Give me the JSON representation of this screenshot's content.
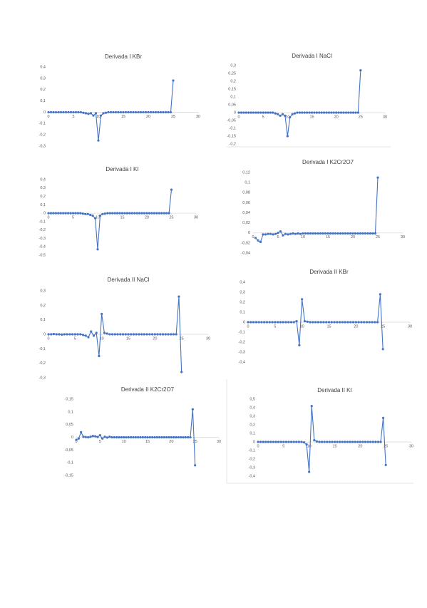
{
  "chart_data": [
    {
      "type": "line",
      "title": "Derivada I KBr",
      "color": "#4472c4",
      "x": [
        0,
        0.5,
        1,
        1.5,
        2,
        2.5,
        3,
        3.5,
        4,
        4.5,
        5,
        5.5,
        6,
        6.5,
        7,
        7.5,
        8,
        8.5,
        9,
        9.5,
        10,
        10.5,
        11,
        11.5,
        12,
        12.5,
        13,
        13.5,
        14,
        14.5,
        15,
        15.5,
        16,
        16.5,
        17,
        17.5,
        18,
        18.5,
        19,
        19.5,
        20,
        20.5,
        21,
        21.5,
        22,
        22.5,
        23,
        23.5,
        24,
        24.5,
        25
      ],
      "values": [
        0,
        0,
        0,
        0,
        0,
        0,
        0,
        0,
        0,
        0,
        0,
        0,
        0,
        0,
        -0.005,
        -0.01,
        -0.015,
        -0.01,
        -0.03,
        -0.01,
        -0.25,
        -0.03,
        -0.01,
        -0.005,
        0,
        0,
        0,
        0,
        0,
        0,
        0,
        0,
        0,
        0,
        0,
        0,
        0,
        0,
        0,
        0,
        0,
        0,
        0,
        0,
        0,
        0,
        0,
        0,
        0,
        0,
        0.28
      ],
      "xlim": [
        0,
        30
      ],
      "xticks": [
        0,
        5,
        10,
        15,
        20,
        25,
        30
      ],
      "ylim": [
        -0.3,
        0.4
      ],
      "yticks": [
        {
          "value": 0.4,
          "label": "0,4"
        },
        {
          "value": 0.3,
          "label": "0,3"
        },
        {
          "value": 0.2,
          "label": "0,2"
        },
        {
          "value": 0.1,
          "label": "0,1"
        },
        0,
        {
          "value": -0.1,
          "label": "-0,1"
        },
        {
          "value": -0.2,
          "label": "-0,2"
        },
        {
          "value": -0.3,
          "label": "-0,3"
        }
      ]
    },
    {
      "type": "line",
      "title": "Derivada I NaCl",
      "color": "#4472c4",
      "x": [
        0,
        0.5,
        1,
        1.5,
        2,
        2.5,
        3,
        3.5,
        4,
        4.5,
        5,
        5.5,
        6,
        6.5,
        7,
        7.5,
        8,
        8.5,
        9,
        9.5,
        10,
        10.5,
        11,
        11.5,
        12,
        12.5,
        13,
        13.5,
        14,
        14.5,
        15,
        15.5,
        16,
        16.5,
        17,
        17.5,
        18,
        18.5,
        19,
        19.5,
        20,
        20.5,
        21,
        21.5,
        22,
        22.5,
        23,
        23.5,
        24,
        24.5,
        25
      ],
      "values": [
        0,
        0,
        0,
        0,
        0,
        0,
        0,
        0,
        0,
        0,
        0,
        0,
        0,
        0,
        0,
        -0.005,
        -0.01,
        -0.02,
        -0.01,
        -0.02,
        -0.15,
        -0.03,
        -0.01,
        -0.005,
        0,
        0,
        0,
        0,
        0,
        0,
        0,
        0,
        0,
        0,
        0,
        0,
        0,
        0,
        0,
        0,
        0,
        0,
        0,
        0,
        0,
        0,
        0,
        0,
        0,
        0,
        0.27
      ],
      "xlim": [
        0,
        30
      ],
      "xticks": [
        0,
        5,
        10,
        15,
        20,
        25,
        30
      ],
      "ylim": [
        -0.2,
        0.3
      ],
      "yticks": [
        {
          "value": 0.3,
          "label": "0,3"
        },
        {
          "value": 0.25,
          "label": "0,25"
        },
        {
          "value": 0.2,
          "label": "0,2"
        },
        {
          "value": 0.15,
          "label": "0,15"
        },
        {
          "value": 0.1,
          "label": "0,1"
        },
        {
          "value": 0.05,
          "label": "0,05"
        },
        0,
        {
          "value": -0.05,
          "label": "-0,05"
        },
        {
          "value": -0.1,
          "label": "-0,1"
        },
        {
          "value": -0.15,
          "label": "-0,15"
        },
        {
          "value": -0.2,
          "label": "-0,2"
        }
      ]
    },
    {
      "type": "line",
      "title": "Derivada I KI",
      "color": "#4472c4",
      "x": [
        0,
        0.5,
        1,
        1.5,
        2,
        2.5,
        3,
        3.5,
        4,
        4.5,
        5,
        5.5,
        6,
        6.5,
        7,
        7.5,
        8,
        8.5,
        9,
        9.5,
        10,
        10.5,
        11,
        11.5,
        12,
        12.5,
        13,
        13.5,
        14,
        14.5,
        15,
        15.5,
        16,
        16.5,
        17,
        17.5,
        18,
        18.5,
        19,
        19.5,
        20,
        20.5,
        21,
        21.5,
        22,
        22.5,
        23,
        23.5,
        24,
        24.5,
        25
      ],
      "values": [
        0,
        0,
        0,
        0,
        0,
        0,
        0,
        0,
        0,
        0,
        0,
        0,
        0,
        0,
        -0.005,
        -0.01,
        -0.01,
        -0.02,
        -0.03,
        -0.06,
        -0.43,
        -0.03,
        -0.01,
        -0.005,
        0,
        0,
        0,
        0,
        0,
        0,
        0,
        0,
        0,
        0,
        0,
        0,
        0,
        0,
        0,
        0,
        0,
        0,
        0,
        0,
        0,
        0,
        0,
        0,
        0,
        0,
        0.28
      ],
      "xlim": [
        0,
        30
      ],
      "xticks": [
        0,
        5,
        10,
        15,
        20,
        25,
        30
      ],
      "ylim": [
        -0.5,
        0.4
      ],
      "yticks": [
        {
          "value": 0.4,
          "label": "0,4"
        },
        {
          "value": 0.3,
          "label": "0,3"
        },
        {
          "value": 0.2,
          "label": "0,2"
        },
        {
          "value": 0.1,
          "label": "0,1"
        },
        0,
        {
          "value": -0.1,
          "label": "-0,1"
        },
        {
          "value": -0.2,
          "label": "-0,2"
        },
        {
          "value": -0.3,
          "label": "-0,3"
        },
        {
          "value": -0.4,
          "label": "-0,4"
        },
        {
          "value": -0.5,
          "label": "-0,5"
        }
      ]
    },
    {
      "type": "line",
      "title": "Derivada I K2Cr2O7",
      "color": "#4472c4",
      "x": [
        0.5,
        1,
        1.5,
        2,
        2.5,
        3,
        3.5,
        4,
        4.5,
        5,
        5.5,
        6,
        6.5,
        7,
        7.5,
        8,
        8.5,
        9,
        9.5,
        10,
        10.5,
        11,
        11.5,
        12,
        12.5,
        13,
        13.5,
        14,
        14.5,
        15,
        15.5,
        16,
        16.5,
        17,
        17.5,
        18,
        18.5,
        19,
        19.5,
        20,
        20.5,
        21,
        21.5,
        22,
        22.5,
        23,
        23.5,
        24,
        24.5,
        25
      ],
      "values": [
        -0.01,
        -0.015,
        -0.018,
        -0.003,
        -0.003,
        -0.002,
        -0.002,
        -0.003,
        -0.002,
        0,
        0.003,
        -0.005,
        -0.002,
        -0.003,
        -0.002,
        -0.001,
        -0.002,
        -0.001,
        -0.002,
        -0.001,
        -0.001,
        -0.001,
        -0.001,
        -0.001,
        -0.001,
        -0.001,
        -0.001,
        -0.001,
        -0.001,
        -0.001,
        -0.001,
        -0.001,
        -0.001,
        -0.001,
        -0.001,
        -0.001,
        -0.001,
        -0.001,
        -0.001,
        -0.001,
        -0.001,
        -0.001,
        -0.001,
        -0.001,
        -0.001,
        -0.001,
        -0.001,
        -0.001,
        -0.001,
        0.11
      ],
      "xlim": [
        0,
        30
      ],
      "xticks": [
        0,
        5,
        10,
        15,
        20,
        25,
        30
      ],
      "ylim": [
        -0.04,
        0.12
      ],
      "yticks": [
        {
          "value": 0.12,
          "label": "0,12"
        },
        {
          "value": 0.1,
          "label": "0,1"
        },
        {
          "value": 0.08,
          "label": "0,08"
        },
        {
          "value": 0.06,
          "label": "0,06"
        },
        {
          "value": 0.04,
          "label": "0,04"
        },
        {
          "value": 0.02,
          "label": "0,02"
        },
        0,
        {
          "value": -0.02,
          "label": "-0,02"
        },
        {
          "value": -0.04,
          "label": "-0,04"
        }
      ]
    },
    {
      "type": "line",
      "title": "Derivada II NaCl",
      "color": "#4472c4",
      "x": [
        0,
        0.5,
        1,
        1.5,
        2,
        2.5,
        3,
        3.5,
        4,
        4.5,
        5,
        5.5,
        6,
        6.5,
        7,
        7.5,
        8,
        8.5,
        9,
        9.5,
        10,
        10.5,
        11,
        11.5,
        12,
        12.5,
        13,
        13.5,
        14,
        14.5,
        15,
        15.5,
        16,
        16.5,
        17,
        17.5,
        18,
        18.5,
        19,
        19.5,
        20,
        20.5,
        21,
        21.5,
        22,
        22.5,
        23,
        23.5,
        24,
        24.5,
        25
      ],
      "values": [
        0,
        0,
        0.002,
        0,
        0,
        -0.002,
        0,
        0,
        0,
        0,
        0,
        0,
        0,
        -0.005,
        -0.01,
        -0.02,
        0.02,
        -0.01,
        0.01,
        -0.15,
        0.14,
        0.01,
        0.005,
        0,
        0,
        0,
        0,
        0,
        0,
        0,
        0,
        0,
        0,
        0,
        0,
        0,
        0,
        0,
        0,
        0,
        0,
        0,
        0,
        0,
        0,
        0,
        0,
        0,
        0,
        0.26,
        -0.26
      ],
      "xlim": [
        0,
        30
      ],
      "xticks": [
        0,
        5,
        10,
        15,
        20,
        25,
        30
      ],
      "ylim": [
        -0.3,
        0.3
      ],
      "yticks": [
        {
          "value": 0.3,
          "label": "0,3"
        },
        {
          "value": 0.2,
          "label": "0,2"
        },
        {
          "value": 0.1,
          "label": "0,1"
        },
        0,
        {
          "value": -0.1,
          "label": "-0,1"
        },
        {
          "value": -0.2,
          "label": "-0,2"
        },
        {
          "value": -0.3,
          "label": "-0,3"
        }
      ]
    },
    {
      "type": "line",
      "title": "Derivada II KBr",
      "color": "#4472c4",
      "x": [
        0,
        0.5,
        1,
        1.5,
        2,
        2.5,
        3,
        3.5,
        4,
        4.5,
        5,
        5.5,
        6,
        6.5,
        7,
        7.5,
        8,
        8.5,
        9,
        9.5,
        10,
        10.5,
        11,
        11.5,
        12,
        12.5,
        13,
        13.5,
        14,
        14.5,
        15,
        15.5,
        16,
        16.5,
        17,
        17.5,
        18,
        18.5,
        19,
        19.5,
        20,
        20.5,
        21,
        21.5,
        22,
        22.5,
        23,
        23.5,
        24,
        24.5,
        25
      ],
      "values": [
        0,
        0,
        0,
        0,
        0,
        0,
        0,
        0,
        0,
        0,
        0,
        0,
        0,
        0,
        0,
        0,
        0,
        0,
        0.01,
        -0.23,
        0.23,
        0.01,
        0.005,
        0,
        0,
        0,
        0,
        0,
        0,
        0,
        0,
        0,
        0,
        0,
        0,
        0,
        0,
        0,
        0,
        0,
        0,
        0,
        0,
        0,
        0,
        0,
        0,
        0,
        0,
        0.28,
        -0.27
      ],
      "xlim": [
        0,
        30
      ],
      "xticks": [
        0,
        5,
        10,
        15,
        20,
        25,
        30
      ],
      "ylim": [
        -0.4,
        0.4
      ],
      "yticks": [
        {
          "value": 0.4,
          "label": "0,4"
        },
        {
          "value": 0.3,
          "label": "0,3"
        },
        {
          "value": 0.2,
          "label": "0,2"
        },
        {
          "value": 0.1,
          "label": "0,1"
        },
        0,
        {
          "value": -0.1,
          "label": "-0,1"
        },
        {
          "value": -0.2,
          "label": "-0,2"
        },
        {
          "value": -0.3,
          "label": "-0,3"
        },
        {
          "value": -0.4,
          "label": "-0,4"
        }
      ]
    },
    {
      "type": "line",
      "title": "Derivada II K2Cr2O7",
      "color": "#4472c4",
      "x": [
        0,
        0.5,
        1,
        1.5,
        2,
        2.5,
        3,
        3.5,
        4,
        4.5,
        5,
        5.5,
        6,
        6.5,
        7,
        7.5,
        8,
        8.5,
        9,
        9.5,
        10,
        10.5,
        11,
        11.5,
        12,
        12.5,
        13,
        13.5,
        14,
        14.5,
        15,
        15.5,
        16,
        16.5,
        17,
        17.5,
        18,
        18.5,
        19,
        19.5,
        20,
        20.5,
        21,
        21.5,
        22,
        22.5,
        23,
        23.5,
        24,
        24.5,
        25
      ],
      "values": [
        -0.01,
        -0.005,
        0.02,
        0.002,
        0.001,
        0,
        0.002,
        0.005,
        0.004,
        0.001,
        0.008,
        -0.005,
        0.002,
        -0.001,
        0.002,
        0,
        0,
        0,
        0,
        0,
        0,
        0,
        0,
        0,
        0,
        0,
        0,
        0,
        0,
        0,
        0,
        0,
        0,
        0,
        0,
        0,
        0,
        0,
        0,
        0,
        0,
        0,
        0,
        0,
        0,
        0,
        0,
        0,
        0,
        0.11,
        -0.11
      ],
      "xlim": [
        0,
        30
      ],
      "xticks": [
        0,
        5,
        10,
        15,
        20,
        25,
        30
      ],
      "ylim": [
        -0.15,
        0.15
      ],
      "yticks": [
        {
          "value": 0.15,
          "label": "0,15"
        },
        {
          "value": 0.1,
          "label": "0,1"
        },
        {
          "value": 0.05,
          "label": "0,05"
        },
        0,
        {
          "value": -0.05,
          "label": "-0,05"
        },
        {
          "value": -0.1,
          "label": "-0,1"
        },
        {
          "value": -0.15,
          "label": "-0,15"
        }
      ]
    },
    {
      "type": "line",
      "title": "Derivada II KI",
      "color": "#4472c4",
      "x": [
        0,
        0.5,
        1,
        1.5,
        2,
        2.5,
        3,
        3.5,
        4,
        4.5,
        5,
        5.5,
        6,
        6.5,
        7,
        7.5,
        8,
        8.5,
        9,
        9.5,
        10,
        10.5,
        11,
        11.5,
        12,
        12.5,
        13,
        13.5,
        14,
        14.5,
        15,
        15.5,
        16,
        16.5,
        17,
        17.5,
        18,
        18.5,
        19,
        19.5,
        20,
        20.5,
        21,
        21.5,
        22,
        22.5,
        23,
        23.5,
        24,
        24.5,
        25
      ],
      "values": [
        0,
        0,
        0,
        0,
        0,
        0,
        0,
        0,
        0,
        0,
        0,
        0,
        0,
        0,
        0,
        0,
        0,
        0,
        -0.005,
        -0.03,
        -0.35,
        0.42,
        0.02,
        0.005,
        0,
        0,
        0,
        0,
        0,
        0,
        0,
        0,
        0,
        0,
        0,
        0,
        0,
        0,
        0,
        0,
        0,
        0,
        0,
        0,
        0,
        0,
        0,
        0,
        0,
        0.28,
        -0.27
      ],
      "xlim": [
        0,
        30
      ],
      "xticks": [
        0,
        5,
        10,
        15,
        20,
        25,
        30
      ],
      "ylim": [
        -0.4,
        0.5
      ],
      "yticks": [
        {
          "value": 0.5,
          "label": "0,5"
        },
        {
          "value": 0.4,
          "label": "0,4"
        },
        {
          "value": 0.3,
          "label": "0,3"
        },
        {
          "value": 0.2,
          "label": "0,2"
        },
        {
          "value": 0.1,
          "label": "0,1"
        },
        0,
        {
          "value": -0.1,
          "label": "-0,1"
        },
        {
          "value": -0.2,
          "label": "-0,2"
        },
        {
          "value": -0.3,
          "label": "-0,3"
        },
        {
          "value": -0.4,
          "label": "-0,4"
        }
      ]
    }
  ]
}
